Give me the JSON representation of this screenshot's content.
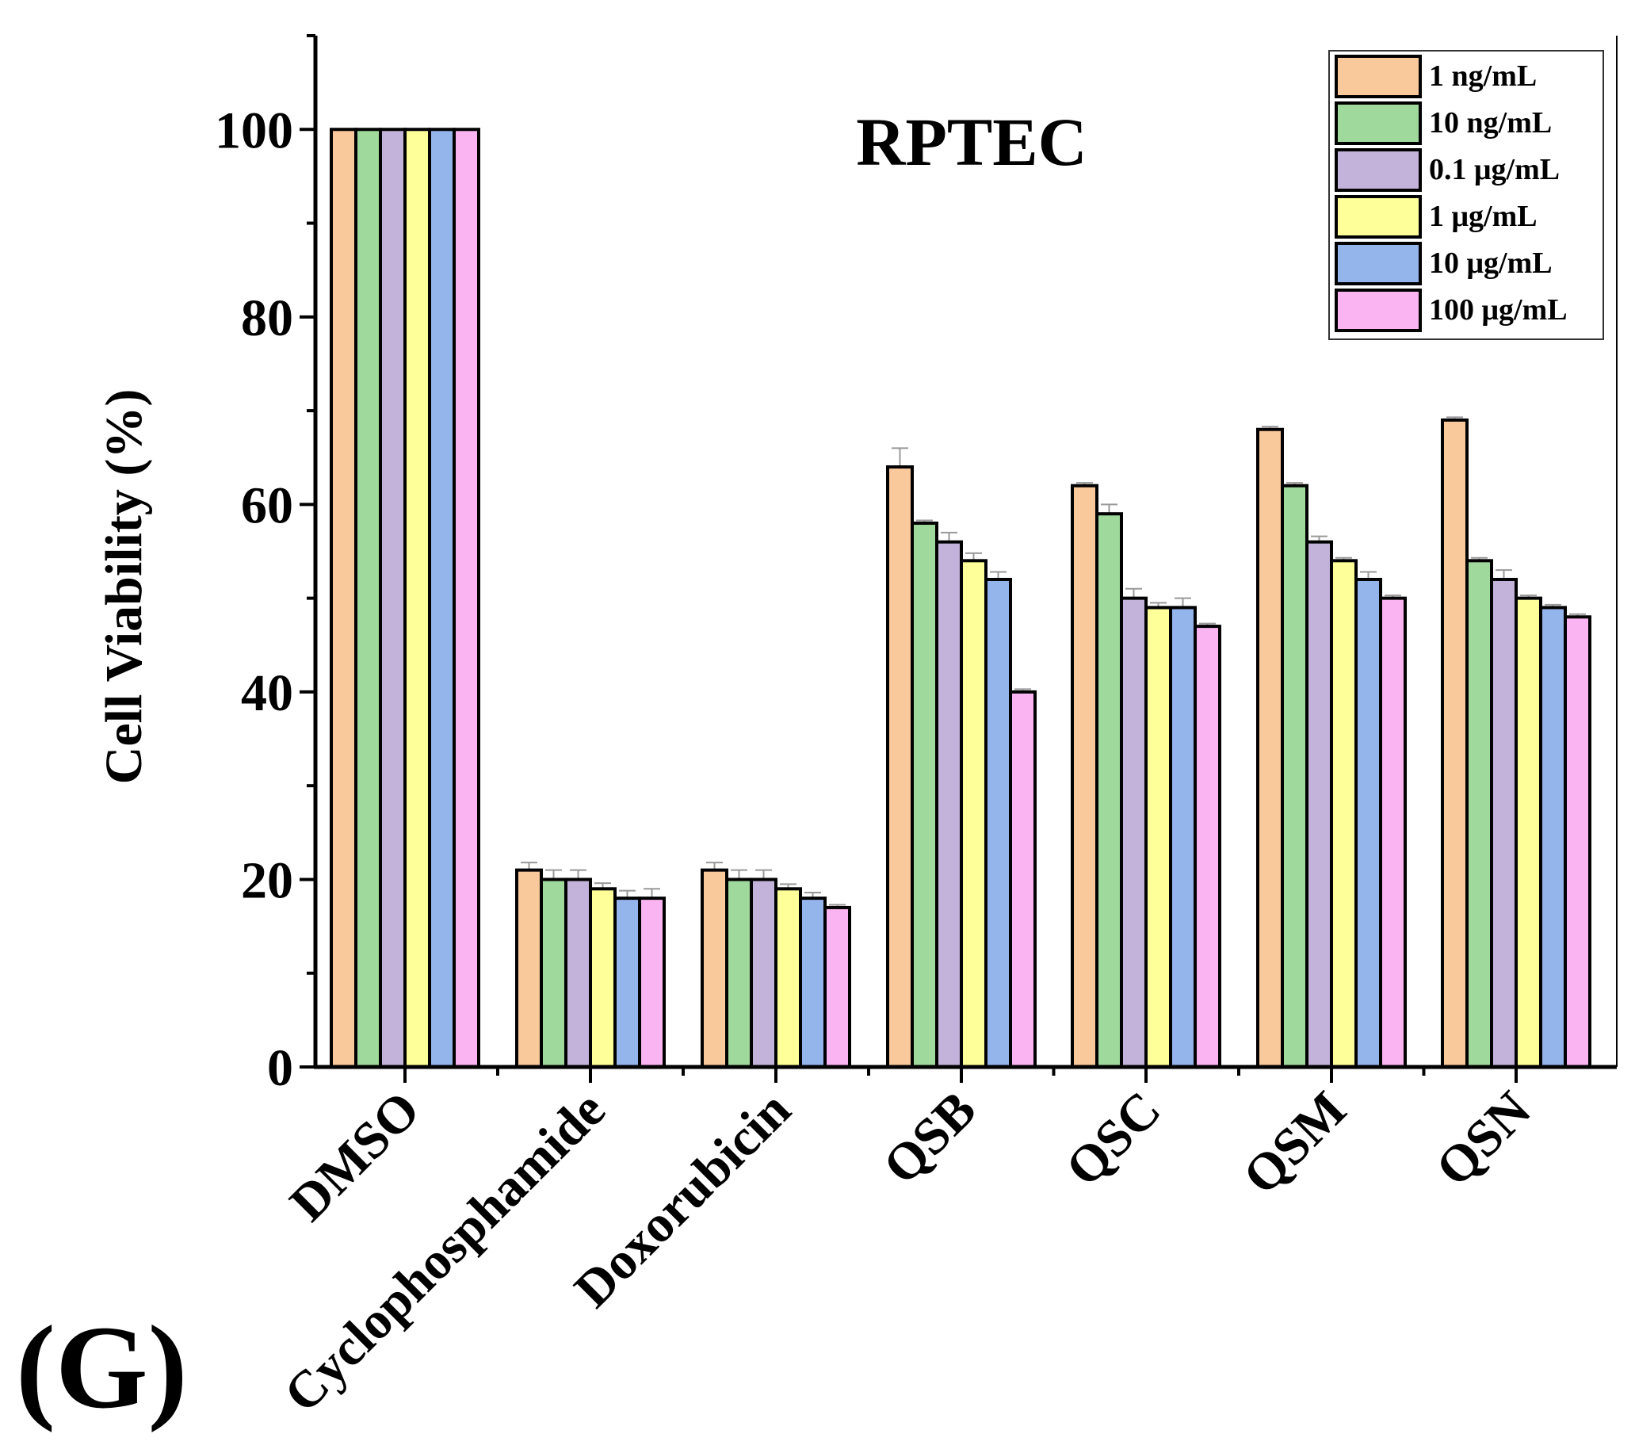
{
  "chart_data": {
    "type": "bar",
    "title": "RPTEC",
    "panel_label": "(G)",
    "xlabel": "",
    "ylabel": "Cell Viability (%)",
    "ylim": [
      0,
      110
    ],
    "yticks": [
      0,
      20,
      40,
      60,
      80,
      100
    ],
    "ytick_labels": [
      "0",
      "20",
      "40",
      "60",
      "80",
      "100"
    ],
    "legend_position": "top-right",
    "grid": false,
    "categories": [
      "DMSO",
      "Cyclophosphamide",
      "Doxorubicin",
      "QSB",
      "QSC",
      "QSM",
      "QSN"
    ],
    "series": [
      {
        "name": "1 ng/mL",
        "color": "#f9c89b",
        "values": [
          100,
          21,
          21,
          64,
          62,
          68,
          69
        ],
        "errors": [
          0,
          0.8,
          0.8,
          2.0,
          0.3,
          0.3,
          0.3
        ]
      },
      {
        "name": "10 ng/mL",
        "color": "#9fd99b",
        "values": [
          100,
          20,
          20,
          58,
          59,
          62,
          54
        ],
        "errors": [
          0,
          1.0,
          1.0,
          0.3,
          1.0,
          0.3,
          0.3
        ]
      },
      {
        "name": "0.1 μg/mL",
        "color": "#c3b2d9",
        "values": [
          100,
          20,
          20,
          56,
          50,
          56,
          52
        ],
        "errors": [
          0,
          1.0,
          1.0,
          1.0,
          1.0,
          0.6,
          1.0
        ]
      },
      {
        "name": "1 μg/mL",
        "color": "#ffff99",
        "values": [
          100,
          19,
          19,
          54,
          49,
          54,
          50
        ],
        "errors": [
          0,
          0.6,
          0.5,
          0.8,
          0.5,
          0.3,
          0.3
        ]
      },
      {
        "name": "10 μg/mL",
        "color": "#94b4ec",
        "values": [
          100,
          18,
          18,
          52,
          49,
          52,
          49
        ],
        "errors": [
          0,
          0.8,
          0.6,
          0.8,
          1.0,
          0.8,
          0.3
        ]
      },
      {
        "name": "100 μg/mL",
        "color": "#f9b4f1",
        "values": [
          100,
          18,
          17,
          40,
          47,
          50,
          48
        ],
        "errors": [
          0,
          1.0,
          0.3,
          0.3,
          0.3,
          0.3,
          0.3
        ]
      }
    ]
  }
}
